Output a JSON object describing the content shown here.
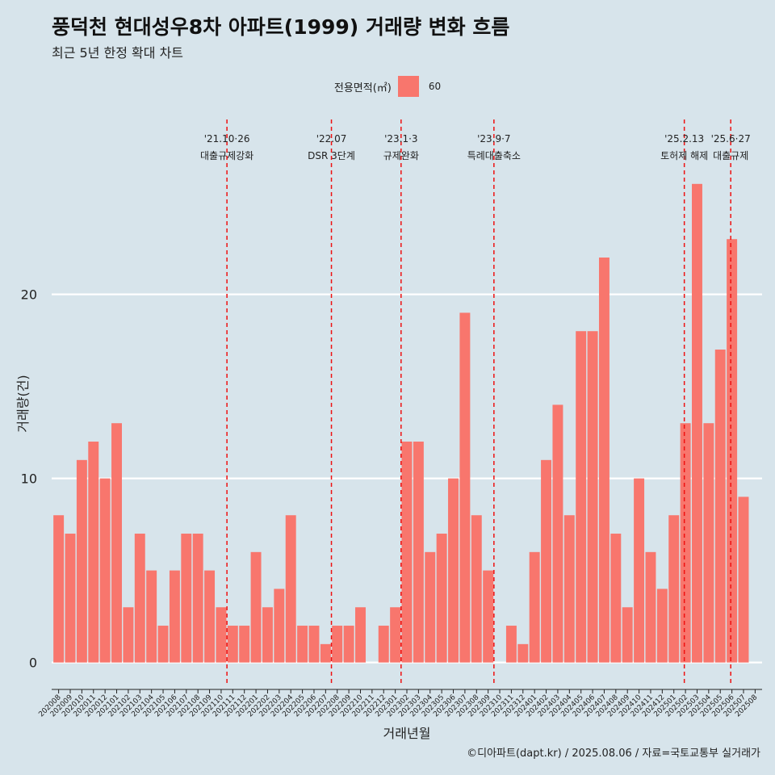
{
  "title": "풍덕천 현대성우8차 아파트(1999) 거래량 변화 흐름",
  "subtitle": "최근 5년 한정 확대 차트",
  "legend": {
    "title": "전용면적(㎡)",
    "item": "60",
    "color": "#f8766d"
  },
  "caption": "©디아파트(dapt.kr) / 2025.08.06 / 자료=국토교통부 실거래가",
  "chart_data": {
    "type": "bar",
    "xlabel": "거래년월",
    "ylabel": "거래량(건)",
    "ylim": [
      -1.2,
      29.5
    ],
    "yticks": [
      0,
      10,
      20
    ],
    "grid": true,
    "bar_color": "#f8766d",
    "categories": [
      "202008",
      "202009",
      "202010",
      "202011",
      "202012",
      "202101",
      "202102",
      "202103",
      "202104",
      "202105",
      "202106",
      "202107",
      "202108",
      "202109",
      "202110",
      "202111",
      "202112",
      "202201",
      "202202",
      "202203",
      "202204",
      "202205",
      "202206",
      "202207",
      "202208",
      "202209",
      "202210",
      "202211",
      "202212",
      "202301",
      "202302",
      "202303",
      "202304",
      "202305",
      "202306",
      "202307",
      "202308",
      "202309",
      "202310",
      "202311",
      "202312",
      "202401",
      "202402",
      "202403",
      "202404",
      "202405",
      "202406",
      "202407",
      "202408",
      "202409",
      "202410",
      "202411",
      "202412",
      "202501",
      "202502",
      "202503",
      "202504",
      "202505",
      "202506",
      "202507",
      "202508"
    ],
    "values": [
      8,
      7,
      11,
      12,
      10,
      13,
      3,
      7,
      5,
      2,
      5,
      7,
      7,
      5,
      3,
      2,
      2,
      6,
      3,
      4,
      8,
      2,
      2,
      1,
      2,
      2,
      3,
      0,
      2,
      3,
      12,
      12,
      6,
      7,
      10,
      19,
      8,
      5,
      0,
      2,
      1,
      6,
      11,
      14,
      8,
      18,
      18,
      22,
      7,
      3,
      10,
      6,
      4,
      8,
      13,
      26,
      13,
      17,
      23,
      9,
      0
    ],
    "annotations": [
      {
        "x": 14.5,
        "line1": "'21.10·26",
        "line2": "대출규제강화"
      },
      {
        "x": 23.5,
        "line1": "'22.07",
        "line2": "DSR 3단계"
      },
      {
        "x": 29.5,
        "line1": "'23.1·3",
        "line2": "규제완화"
      },
      {
        "x": 37.5,
        "line1": "'23.9·7",
        "line2": "특례대출축소"
      },
      {
        "x": 53.9,
        "line1": "'25.2.13",
        "line2": "토허제 해제"
      },
      {
        "x": 57.9,
        "line1": "'25.6·27",
        "line2": "대출규제"
      }
    ]
  }
}
